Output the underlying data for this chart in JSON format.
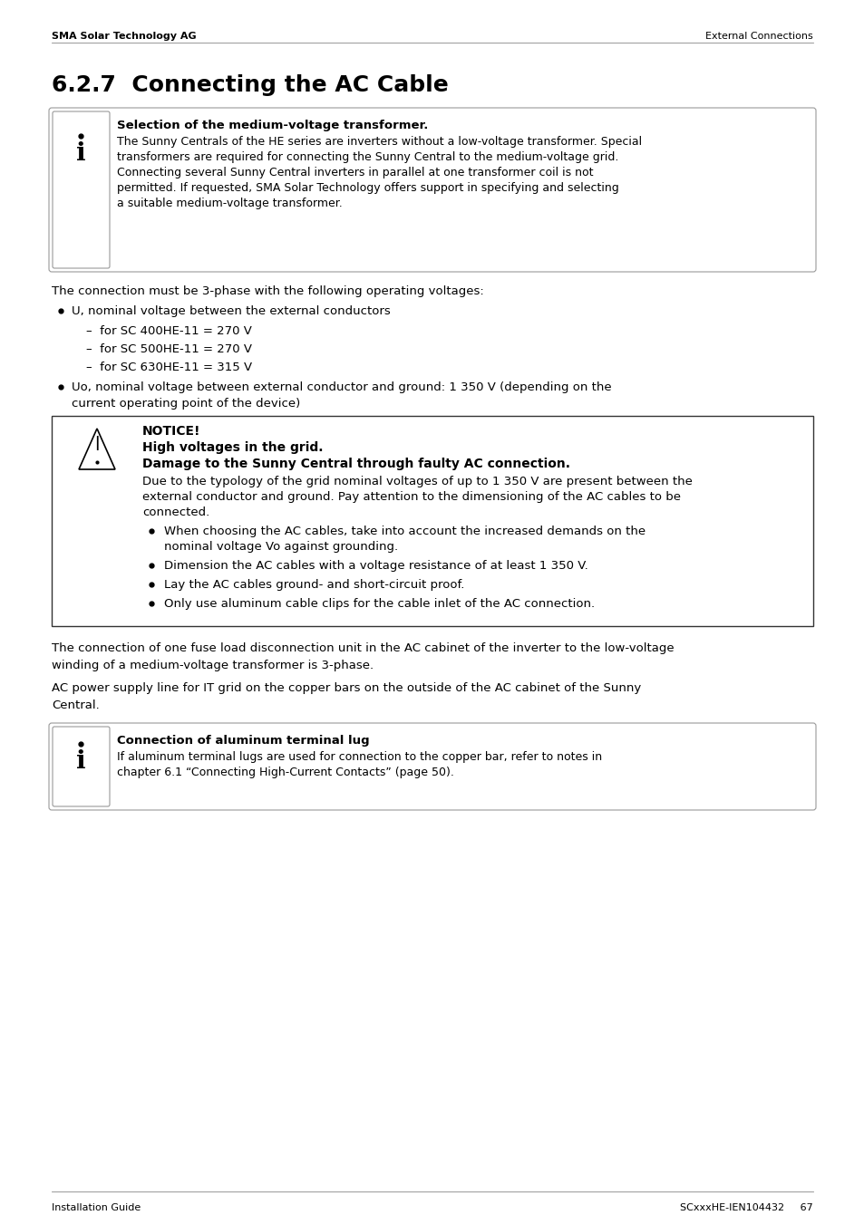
{
  "header_left": "SMA Solar Technology AG",
  "header_right": "External Connections",
  "title": "6.2.7  Connecting the AC Cable",
  "info_box1_title": "Selection of the medium-voltage transformer.",
  "info_box1_lines": [
    "The Sunny Centrals of the HE series are inverters without a low-voltage transformer. Special",
    "transformers are required for connecting the Sunny Central to the medium-voltage grid.",
    "Connecting several Sunny Central inverters in parallel at one transformer coil is not",
    "permitted. If requested, SMA Solar Technology offers support in specifying and selecting",
    "a suitable medium-voltage transformer."
  ],
  "para1": "The connection must be 3-phase with the following operating voltages:",
  "bullet1_main": "U, nominal voltage between the external conductors",
  "sub_bullet1": "–  for SC 400HE-11 = 270 V",
  "sub_bullet2": "–  for SC 500HE-11 = 270 V",
  "sub_bullet3": "–  for SC 630HE-11 = 315 V",
  "bullet2_line1": "Uo, nominal voltage between external conductor and ground: 1 350 V (depending on the",
  "bullet2_line2": "current operating point of the device)",
  "notice_label": "NOTICE!",
  "notice_sub1": "High voltages in the grid.",
  "notice_sub2": "Damage to the Sunny Central through faulty AC connection.",
  "notice_text_lines": [
    "Due to the typology of the grid nominal voltages of up to 1 350 V are present between the",
    "external conductor and ground. Pay attention to the dimensioning of the AC cables to be",
    "connected."
  ],
  "notice_bullet1_lines": [
    "When choosing the AC cables, take into account the increased demands on the",
    "nominal voltage Vo against grounding."
  ],
  "notice_bullet2": "Dimension the AC cables with a voltage resistance of at least 1 350 V.",
  "notice_bullet3": "Lay the AC cables ground- and short-circuit proof.",
  "notice_bullet4": "Only use aluminum cable clips for the cable inlet of the AC connection.",
  "para2_lines": [
    "The connection of one fuse load disconnection unit in the AC cabinet of the inverter to the low-voltage",
    "winding of a medium-voltage transformer is 3-phase."
  ],
  "para3_lines": [
    "AC power supply line for IT grid on the copper bars on the outside of the AC cabinet of the Sunny",
    "Central."
  ],
  "info_box2_title": "Connection of aluminum terminal lug",
  "info_box2_lines": [
    "If aluminum terminal lugs are used for connection to the copper bar, refer to notes in",
    "chapter 6.1 “Connecting High-Current Contacts” (page 50)."
  ],
  "footer_left": "Installation Guide",
  "footer_right": "SCxxxHE-IEN104432     67",
  "bg_color": "#ffffff",
  "text_color": "#000000"
}
